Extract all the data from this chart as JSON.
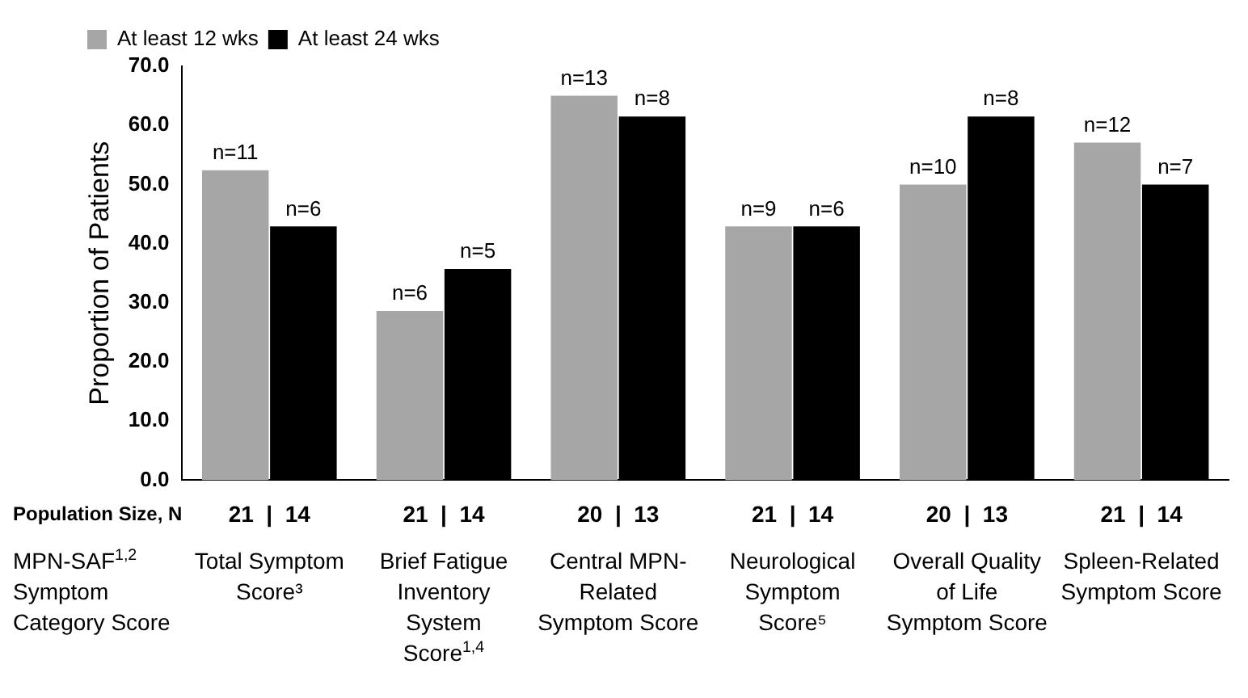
{
  "chart_data": {
    "type": "bar",
    "ylabel": "Proportion of Patients",
    "xlabel": "MPN-SAF$^{1,2}$ Symptom Category Score",
    "categories": [
      "Total Symptom Score³",
      "Brief Fatigue Inventory System Score$^{1,4}$",
      "Central MPN-Related Symptom Score",
      "Neurological Symptom Score⁵",
      "Overall Quality of Life Symptom Score",
      "Spleen-Related Symptom Score"
    ],
    "series": [
      {
        "name": "At least 12 wks",
        "color": "#a6a6a6",
        "values": [
          52.4,
          28.6,
          65.0,
          42.9,
          50.0,
          57.1
        ]
      },
      {
        "name": "At least 24 wks",
        "color": "#000000",
        "values": [
          42.9,
          35.7,
          61.5,
          42.9,
          61.5,
          50.0
        ]
      }
    ],
    "ylim": [
      0,
      70
    ],
    "yticks": [
      {
        "value": 0,
        "label": "0.0"
      },
      {
        "value": 10,
        "label": "10.0"
      },
      {
        "value": 20,
        "label": "20.0"
      },
      {
        "value": 30,
        "label": "30.0"
      },
      {
        "value": 40,
        "label": "40.0"
      },
      {
        "value": 50,
        "label": "50.0"
      },
      {
        "value": 60,
        "label": "60.0"
      },
      {
        "value": 70,
        "label": "70.0"
      }
    ],
    "annotations": [
      "Population Size, N",
      "21  |  14",
      "21  |  14",
      "20  |  13",
      "21  |  14",
      "20  |  13",
      "21  |  14",
      {
        "text": "n=11",
        "x": "Total Symptom Score³",
        "y": 52.4
      },
      {
        "text": "n=6",
        "x": "Total Symptom Score³",
        "y": 42.9
      },
      {
        "text": "n=6",
        "x": "Brief Fatigue Inventory System Score$^{1,4}$",
        "y": 28.6
      },
      {
        "text": "n=5",
        "x": "Brief Fatigue Inventory System Score$^{1,4}$",
        "y": 35.7
      },
      {
        "text": "n=13",
        "x": "Central MPN-Related Symptom Score",
        "y": 65.0
      },
      {
        "text": "n=8",
        "x": "Central MPN-Related Symptom Score",
        "y": 61.5
      },
      {
        "text": "n=9",
        "x": "Neurological Symptom Score⁵",
        "y": 42.9
      },
      {
        "text": "n=6",
        "x": "Neurological Symptom Score⁵",
        "y": 42.9
      },
      {
        "text": "n=10",
        "x": "Overall Quality of Life Symptom Score",
        "y": 50.0
      },
      {
        "text": "n=8",
        "x": "Overall Quality of Life Symptom Score",
        "y": 61.5
      },
      {
        "text": "n=12",
        "x": "Spleen-Related Symptom Score",
        "y": 57.1
      },
      {
        "text": "n=7",
        "x": "Spleen-Related Symptom Score",
        "y": 50.0
      }
    ],
    "grid": false,
    "legend": "top left"
  }
}
